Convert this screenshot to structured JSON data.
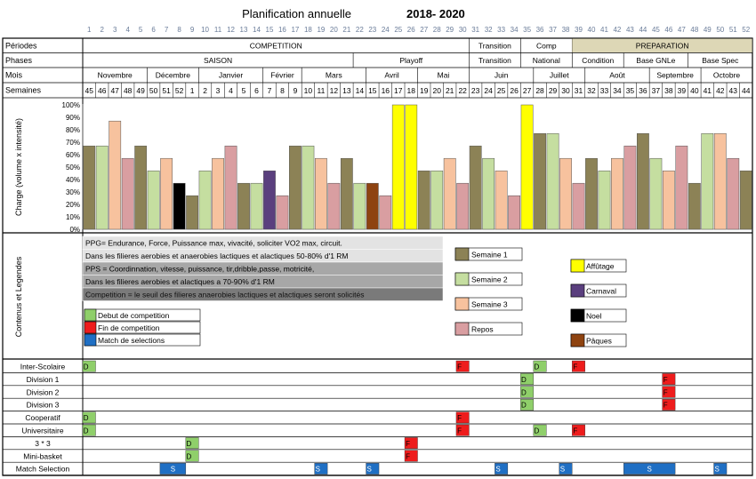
{
  "title": {
    "main": "Planification annuelle",
    "years": "2018- 2020"
  },
  "columns": [
    "1",
    "2",
    "3",
    "4",
    "5",
    "6",
    "7",
    "8",
    "9",
    "10",
    "11",
    "12",
    "13",
    "14",
    "15",
    "16",
    "17",
    "18",
    "19",
    "20",
    "21",
    "22",
    "23",
    "24",
    "25",
    "26",
    "27",
    "28",
    "29",
    "30",
    "31",
    "32",
    "33",
    "34",
    "35",
    "36",
    "37",
    "38",
    "39",
    "40",
    "41",
    "42",
    "43",
    "44",
    "45",
    "46",
    "47",
    "48",
    "49",
    "50",
    "51",
    "52"
  ],
  "rows": {
    "periodes": {
      "label": "Périodes",
      "segments": [
        {
          "label": "COMPETITION",
          "start": 1,
          "end": 30
        },
        {
          "label": "Transition",
          "start": 31,
          "end": 34
        },
        {
          "label": "Comp",
          "start": 35,
          "end": 38
        },
        {
          "label": "PREPARATION",
          "start": 39,
          "end": 52
        }
      ]
    },
    "phases": {
      "label": "Phases",
      "segments": [
        {
          "label": "SAISON",
          "start": 1,
          "end": 21
        },
        {
          "label": "Playoff",
          "start": 22,
          "end": 30
        },
        {
          "label": "Transition",
          "start": 31,
          "end": 34
        },
        {
          "label": "National",
          "start": 35,
          "end": 38
        },
        {
          "label": "Condition",
          "start": 39,
          "end": 42
        },
        {
          "label": "Base GNLe",
          "start": 43,
          "end": 47
        },
        {
          "label": "Base Spec",
          "start": 48,
          "end": 52
        }
      ]
    },
    "mois": {
      "label": "Mois",
      "segments": [
        {
          "label": "Novembre",
          "start": 1,
          "end": 5
        },
        {
          "label": "Décembre",
          "start": 6,
          "end": 9
        },
        {
          "label": "Janvier",
          "start": 10,
          "end": 14
        },
        {
          "label": "Février",
          "start": 15,
          "end": 17
        },
        {
          "label": "Mars",
          "start": 18,
          "end": 22
        },
        {
          "label": "Avril",
          "start": 23,
          "end": 26
        },
        {
          "label": "Mai",
          "start": 27,
          "end": 30
        },
        {
          "label": "Juin",
          "start": 31,
          "end": 35
        },
        {
          "label": "Juillet",
          "start": 36,
          "end": 39
        },
        {
          "label": "Août",
          "start": 40,
          "end": 44
        },
        {
          "label": "Septembre",
          "start": 45,
          "end": 48
        },
        {
          "label": "Octobre",
          "start": 49,
          "end": 52
        }
      ]
    },
    "semaines": {
      "label": "Semaines",
      "values": [
        "45",
        "46",
        "47",
        "48",
        "49",
        "50",
        "51",
        "52",
        "1",
        "2",
        "3",
        "4",
        "5",
        "6",
        "7",
        "8",
        "9",
        "10",
        "11",
        "12",
        "13",
        "14",
        "15",
        "16",
        "17",
        "18",
        "19",
        "20",
        "21",
        "22",
        "23",
        "24",
        "25",
        "26",
        "27",
        "28",
        "29",
        "30",
        "31",
        "32",
        "33",
        "34",
        "35",
        "36",
        "37",
        "38",
        "39",
        "40",
        "41",
        "42",
        "43",
        "44"
      ]
    }
  },
  "chart_data": {
    "type": "bar",
    "ylabel": "Charge (volume x intensité)",
    "ylim": [
      0,
      100
    ],
    "yticks": [
      "0%",
      "10%",
      "20%",
      "30%",
      "40%",
      "50%",
      "60%",
      "70%",
      "80%",
      "90%",
      "100%"
    ],
    "categories": [
      "45",
      "46",
      "47",
      "48",
      "49",
      "50",
      "51",
      "52",
      "1",
      "2",
      "3",
      "4",
      "5",
      "6",
      "7",
      "8",
      "9",
      "10",
      "11",
      "12",
      "13",
      "14",
      "15",
      "16",
      "17",
      "18",
      "19",
      "20",
      "21",
      "22",
      "23",
      "24",
      "25",
      "26",
      "27",
      "28",
      "29",
      "30",
      "31",
      "32",
      "33",
      "34",
      "35",
      "36",
      "37",
      "38",
      "39",
      "40",
      "41",
      "42",
      "43",
      "44"
    ],
    "values": [
      67,
      67,
      87,
      57,
      67,
      47,
      57,
      37,
      27,
      47,
      57,
      67,
      37,
      37,
      47,
      27,
      67,
      67,
      57,
      37,
      57,
      37,
      37,
      27,
      100,
      100,
      47,
      47,
      57,
      37,
      67,
      57,
      47,
      27,
      100,
      77,
      77,
      57,
      37,
      57,
      47,
      57,
      67,
      77,
      57,
      47,
      67,
      37,
      77,
      77,
      57,
      47
    ],
    "types": [
      "s1",
      "s2",
      "s3",
      "r",
      "s1",
      "s2",
      "s3",
      "n",
      "s1",
      "s2",
      "s3",
      "r",
      "s1",
      "s2",
      "c",
      "r",
      "s1",
      "s2",
      "s3",
      "r",
      "s1",
      "s2",
      "p",
      "r",
      "a",
      "a",
      "s1",
      "s2",
      "s3",
      "r",
      "s1",
      "s2",
      "s3",
      "r",
      "a",
      "s1",
      "s2",
      "s3",
      "r",
      "s1",
      "s2",
      "s3",
      "r",
      "s1",
      "s2",
      "s3",
      "r",
      "s1",
      "s2",
      "s3",
      "r",
      "s1"
    ]
  },
  "colors": {
    "s1": "#8c8256",
    "s2": "#c5dea0",
    "s3": "#f7c29e",
    "r": "#d99ea1",
    "a": "#ffff00",
    "c": "#5a3f7e",
    "n": "#000000",
    "p": "#8e4310",
    "debut": "#8fcf6a",
    "fin": "#ee1c1c",
    "select": "#1f6fc4",
    "header": "#ddd7b6",
    "box1": "#e3e3e3",
    "box2": "#a7a7a7",
    "box3": "#7a7a7a"
  },
  "contenus": {
    "section_label": "Contenus et Legendes",
    "boxes": [
      "PPG=  Endurance, Force, Puissance max, vivacité, soliciter VO2 max, circuit.",
      "Dans les filieres aerobies et anaerobies lactiques et alactiques 50-80% d'1 RM",
      "PPS = Coordinnation, vitesse, puissance, tir,dribble,passe, motricité,",
      "Dans les filieres aerobies et alactiques a 70-90% d'1 RM",
      "Competition = le seuil des filieres anaerobies lactiques et alactiques seront solicités"
    ],
    "legend_left": [
      {
        "key": "debut",
        "label": "Debut de competition"
      },
      {
        "key": "fin",
        "label": "Fin de competition"
      },
      {
        "key": "select",
        "label": "Match de selections"
      }
    ],
    "legend_mid": [
      {
        "key": "s1",
        "label": "Semaine 1"
      },
      {
        "key": "s2",
        "label": "Semaine 2"
      },
      {
        "key": "s3",
        "label": "Semaine 3"
      },
      {
        "key": "r",
        "label": "Repos"
      }
    ],
    "legend_right": [
      {
        "key": "a",
        "label": "Affûtage"
      },
      {
        "key": "c",
        "label": "Carnaval"
      },
      {
        "key": "n",
        "label": "Noel"
      },
      {
        "key": "p",
        "label": "Pâques"
      }
    ]
  },
  "competitions": [
    {
      "label": "Inter-Scolaire",
      "marks": [
        {
          "col": 1,
          "t": "D",
          "k": "debut"
        },
        {
          "col": 30,
          "t": "F",
          "k": "fin"
        },
        {
          "col": 36,
          "t": "D",
          "k": "debut"
        },
        {
          "col": 39,
          "t": "F",
          "k": "fin"
        }
      ]
    },
    {
      "label": "Division 1",
      "marks": [
        {
          "col": 35,
          "t": "D",
          "k": "debut"
        },
        {
          "col": 46,
          "t": "F",
          "k": "fin"
        }
      ]
    },
    {
      "label": "Division 2",
      "marks": [
        {
          "col": 35,
          "t": "D",
          "k": "debut"
        },
        {
          "col": 46,
          "t": "F",
          "k": "fin"
        }
      ]
    },
    {
      "label": "Division 3",
      "marks": [
        {
          "col": 35,
          "t": "D",
          "k": "debut"
        },
        {
          "col": 46,
          "t": "F",
          "k": "fin"
        }
      ]
    },
    {
      "label": "Cooperatif",
      "marks": [
        {
          "col": 1,
          "t": "D",
          "k": "debut"
        },
        {
          "col": 30,
          "t": "F",
          "k": "fin"
        }
      ]
    },
    {
      "label": "Universitaire",
      "marks": [
        {
          "col": 1,
          "t": "D",
          "k": "debut"
        },
        {
          "col": 30,
          "t": "F",
          "k": "fin"
        },
        {
          "col": 36,
          "t": "D",
          "k": "debut"
        },
        {
          "col": 39,
          "t": "F",
          "k": "fin"
        }
      ]
    },
    {
      "label": "3 * 3",
      "marks": [
        {
          "col": 9,
          "t": "D",
          "k": "debut"
        },
        {
          "col": 26,
          "t": "F",
          "k": "fin"
        }
      ]
    },
    {
      "label": "Mini-basket",
      "marks": [
        {
          "col": 9,
          "t": "D",
          "k": "debut"
        },
        {
          "col": 26,
          "t": "F",
          "k": "fin"
        }
      ]
    },
    {
      "label": "Match Selection",
      "marks": [
        {
          "col": 7,
          "t": "S",
          "k": "select",
          "span": 2
        },
        {
          "col": 19,
          "t": "S",
          "k": "select"
        },
        {
          "col": 23,
          "t": "S",
          "k": "select"
        },
        {
          "col": 33,
          "t": "S",
          "k": "select"
        },
        {
          "col": 38,
          "t": "S",
          "k": "select"
        },
        {
          "col": 43,
          "t": "S",
          "k": "select",
          "span": 4
        },
        {
          "col": 50,
          "t": "S",
          "k": "select"
        }
      ]
    }
  ]
}
